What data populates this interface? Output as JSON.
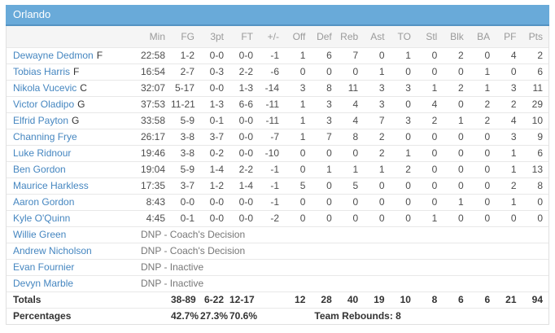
{
  "team_header": {
    "name": "Orlando"
  },
  "table": {
    "columns": [
      "Min",
      "FG",
      "3pt",
      "FT",
      "+/-",
      "Off",
      "Def",
      "Reb",
      "Ast",
      "TO",
      "Stl",
      "Blk",
      "BA",
      "PF",
      "Pts"
    ],
    "players": [
      {
        "name": "Dewayne Dedmon",
        "pos": "F",
        "stats": [
          "22:58",
          "1-2",
          "0-0",
          "0-0",
          "-1",
          "1",
          "6",
          "7",
          "0",
          "1",
          "0",
          "2",
          "0",
          "4",
          "2"
        ]
      },
      {
        "name": "Tobias Harris",
        "pos": "F",
        "stats": [
          "16:54",
          "2-7",
          "0-3",
          "2-2",
          "-6",
          "0",
          "0",
          "0",
          "1",
          "0",
          "0",
          "0",
          "1",
          "0",
          "6"
        ]
      },
      {
        "name": "Nikola Vucevic",
        "pos": "C",
        "stats": [
          "32:07",
          "5-17",
          "0-0",
          "1-3",
          "-14",
          "3",
          "8",
          "11",
          "3",
          "3",
          "1",
          "2",
          "1",
          "3",
          "11"
        ]
      },
      {
        "name": "Victor Oladipo",
        "pos": "G",
        "stats": [
          "37:53",
          "11-21",
          "1-3",
          "6-6",
          "-11",
          "1",
          "3",
          "4",
          "3",
          "0",
          "4",
          "0",
          "2",
          "2",
          "29"
        ]
      },
      {
        "name": "Elfrid Payton",
        "pos": "G",
        "stats": [
          "33:58",
          "5-9",
          "0-1",
          "0-0",
          "-11",
          "1",
          "3",
          "4",
          "7",
          "3",
          "2",
          "1",
          "2",
          "4",
          "10"
        ]
      },
      {
        "name": "Channing Frye",
        "pos": "",
        "stats": [
          "26:17",
          "3-8",
          "3-7",
          "0-0",
          "-7",
          "1",
          "7",
          "8",
          "2",
          "0",
          "0",
          "0",
          "0",
          "3",
          "9"
        ]
      },
      {
        "name": "Luke Ridnour",
        "pos": "",
        "stats": [
          "19:46",
          "3-8",
          "0-2",
          "0-0",
          "-10",
          "0",
          "0",
          "0",
          "2",
          "1",
          "0",
          "0",
          "0",
          "1",
          "6"
        ]
      },
      {
        "name": "Ben Gordon",
        "pos": "",
        "stats": [
          "19:04",
          "5-9",
          "1-4",
          "2-2",
          "-1",
          "0",
          "1",
          "1",
          "1",
          "2",
          "0",
          "0",
          "0",
          "1",
          "13"
        ]
      },
      {
        "name": "Maurice Harkless",
        "pos": "",
        "stats": [
          "17:35",
          "3-7",
          "1-2",
          "1-4",
          "-1",
          "5",
          "0",
          "5",
          "0",
          "0",
          "0",
          "0",
          "0",
          "2",
          "8"
        ]
      },
      {
        "name": "Aaron Gordon",
        "pos": "",
        "stats": [
          "8:43",
          "0-0",
          "0-0",
          "0-0",
          "-1",
          "0",
          "0",
          "0",
          "0",
          "0",
          "0",
          "1",
          "0",
          "1",
          "0"
        ]
      },
      {
        "name": "Kyle O'Quinn",
        "pos": "",
        "stats": [
          "4:45",
          "0-1",
          "0-0",
          "0-0",
          "-2",
          "0",
          "0",
          "0",
          "0",
          "0",
          "1",
          "0",
          "0",
          "0",
          "0"
        ]
      }
    ],
    "dnp": [
      {
        "name": "Willie Green",
        "status": "DNP - Coach's Decision"
      },
      {
        "name": "Andrew Nicholson",
        "status": "DNP - Coach's Decision"
      },
      {
        "name": "Evan Fournier",
        "status": "DNP - Inactive"
      },
      {
        "name": "Devyn Marble",
        "status": "DNP - Inactive"
      }
    ],
    "totals": {
      "label": "Totals",
      "stats": [
        "",
        "38-89",
        "6-22",
        "12-17",
        "",
        "12",
        "28",
        "40",
        "19",
        "10",
        "8",
        "6",
        "6",
        "21",
        "94"
      ]
    },
    "percentages": {
      "label": "Percentages",
      "fg_pct": "42.7%",
      "three_pt_pct": "27.3%",
      "ft_pct": "70.6%",
      "team_rebounds": "Team Rebounds: 8"
    }
  },
  "colors": {
    "team_header_bg": "#69aad9",
    "team_header_border": "#5493c2",
    "player_link": "#4586c0",
    "column_header_bg": "#f5f5f5"
  }
}
